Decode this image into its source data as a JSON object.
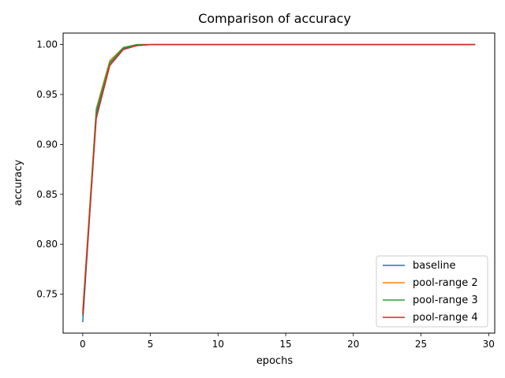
{
  "chart_data": {
    "type": "line",
    "title": "Comparison of accuracy",
    "xlabel": "epochs",
    "ylabel": "accuracy",
    "xlim": [
      -1.45,
      30.45
    ],
    "ylim": [
      0.711,
      1.0115
    ],
    "xticks": [
      0,
      5,
      10,
      15,
      20,
      25,
      30
    ],
    "yticks": [
      0.75,
      0.8,
      0.85,
      0.9,
      0.95,
      1.0
    ],
    "ytick_labels": [
      "0.75",
      "0.80",
      "0.85",
      "0.90",
      "0.95",
      "1.00"
    ],
    "grid": false,
    "legend_position": "lower-right",
    "x": [
      0,
      1,
      2,
      3,
      4,
      5,
      6,
      7,
      8,
      9,
      10,
      11,
      12,
      13,
      14,
      15,
      16,
      17,
      18,
      19,
      20,
      21,
      22,
      23,
      24,
      25,
      26,
      27,
      28,
      29
    ],
    "series": [
      {
        "name": "baseline",
        "color": "#1f77b4",
        "values": [
          0.722,
          0.93,
          0.981,
          0.996,
          0.999,
          1.0,
          1.0,
          1.0,
          1.0,
          1.0,
          1.0,
          1.0,
          1.0,
          1.0,
          1.0,
          1.0,
          1.0,
          1.0,
          1.0,
          1.0,
          1.0,
          1.0,
          1.0,
          1.0,
          1.0,
          1.0,
          1.0,
          1.0,
          1.0,
          1.0
        ]
      },
      {
        "name": "pool-range 2",
        "color": "#ff7f0e",
        "values": [
          0.733,
          0.936,
          0.984,
          0.997,
          1.0,
          1.0,
          1.0,
          1.0,
          1.0,
          1.0,
          1.0,
          1.0,
          1.0,
          1.0,
          1.0,
          1.0,
          1.0,
          1.0,
          1.0,
          1.0,
          1.0,
          1.0,
          1.0,
          1.0,
          1.0,
          1.0,
          1.0,
          1.0,
          1.0,
          1.0
        ]
      },
      {
        "name": "pool-range 3",
        "color": "#2ca02c",
        "values": [
          0.728,
          0.934,
          0.982,
          0.997,
          1.0,
          1.0,
          1.0,
          1.0,
          1.0,
          1.0,
          1.0,
          1.0,
          1.0,
          1.0,
          1.0,
          1.0,
          1.0,
          1.0,
          1.0,
          1.0,
          1.0,
          1.0,
          1.0,
          1.0,
          1.0,
          1.0,
          1.0,
          1.0,
          1.0,
          1.0
        ]
      },
      {
        "name": "pool-range 4",
        "color": "#d62728",
        "values": [
          0.73,
          0.926,
          0.979,
          0.995,
          0.999,
          1.0,
          1.0,
          1.0,
          1.0,
          1.0,
          1.0,
          1.0,
          1.0,
          1.0,
          1.0,
          1.0,
          1.0,
          1.0,
          1.0,
          1.0,
          1.0,
          1.0,
          1.0,
          1.0,
          1.0,
          1.0,
          1.0,
          1.0,
          1.0,
          1.0
        ]
      }
    ]
  }
}
